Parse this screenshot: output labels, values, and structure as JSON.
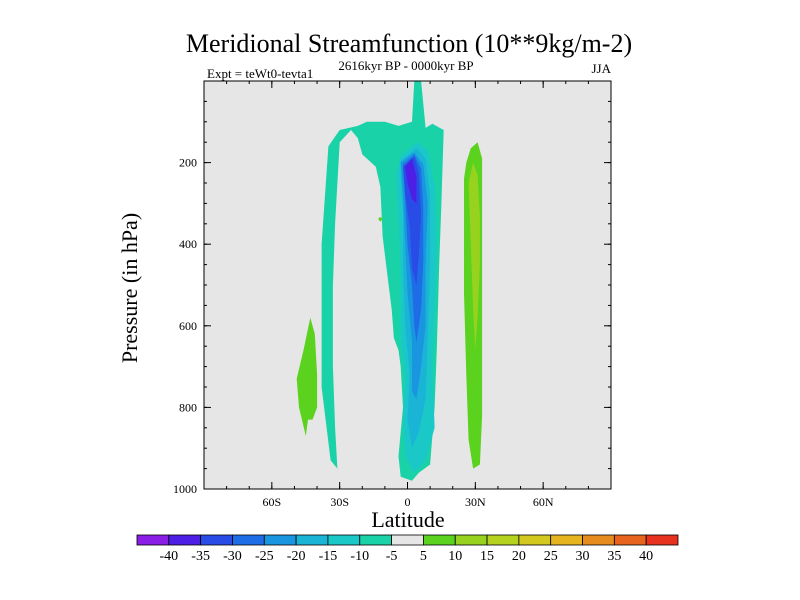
{
  "chart_data": {
    "type": "contour",
    "title": "Meridional Streamfunction (10**9kg/m-2)",
    "subtitle": "2616kyr BP - 0000kyr BP",
    "left_label": "Expt = teWt0-tevta1",
    "right_label": "JJA",
    "xlabel": "Latitude",
    "ylabel": "Pressure (in hPa)",
    "xlim": [
      -90,
      90
    ],
    "ylim": [
      1000,
      0
    ],
    "x_ticks": [
      {
        "value": -60,
        "label": "60S"
      },
      {
        "value": -30,
        "label": "30S"
      },
      {
        "value": 0,
        "label": "0"
      },
      {
        "value": 30,
        "label": "30N"
      },
      {
        "value": 60,
        "label": "60N"
      }
    ],
    "y_ticks": [
      {
        "value": 200,
        "label": "200"
      },
      {
        "value": 400,
        "label": "400"
      },
      {
        "value": 600,
        "label": "600"
      },
      {
        "value": 800,
        "label": "800"
      },
      {
        "value": 1000,
        "label": "1000"
      }
    ],
    "y_minor_step": 50,
    "x_minor_step": 10,
    "background_fill": "#e6e6e6",
    "colorbar": {
      "levels": [
        -40,
        -35,
        -30,
        -25,
        -20,
        -15,
        -10,
        -5,
        5,
        10,
        15,
        20,
        25,
        30,
        35,
        40
      ],
      "colors": [
        "#8a1ee6",
        "#4d1ee6",
        "#2a4ce6",
        "#1f6de6",
        "#1a96e0",
        "#1ab4d6",
        "#1ac8c8",
        "#1ad2a8",
        "#e6e6e6",
        "#5ad21e",
        "#96d21e",
        "#b4d21e",
        "#d2c81e",
        "#e6b41e",
        "#e68c1e",
        "#e6641e",
        "#e6321e"
      ]
    },
    "regions": [
      {
        "level_index": 7,
        "points": [
          [
            -31,
            950
          ],
          [
            -32,
            850
          ],
          [
            -33,
            700
          ],
          [
            -33,
            500
          ],
          [
            -32,
            350
          ],
          [
            -31,
            250
          ],
          [
            -30,
            150
          ],
          [
            -25,
            120
          ],
          [
            -22,
            140
          ],
          [
            -20,
            180
          ],
          [
            -14,
            210
          ],
          [
            -12,
            260
          ],
          [
            -11,
            380
          ],
          [
            -9,
            470
          ],
          [
            -7,
            560
          ],
          [
            -6,
            630
          ],
          [
            -4,
            660
          ],
          [
            -3,
            700
          ],
          [
            -2,
            800
          ],
          [
            -3,
            860
          ],
          [
            -4,
            920
          ],
          [
            -3,
            970
          ],
          [
            2,
            980
          ],
          [
            5,
            960
          ],
          [
            10,
            940
          ],
          [
            12,
            800
          ],
          [
            13,
            650
          ],
          [
            14,
            450
          ],
          [
            15,
            300
          ],
          [
            16,
            120
          ],
          [
            11,
            105
          ],
          [
            8,
            115
          ],
          [
            6,
            0
          ],
          [
            3,
            0
          ],
          [
            2,
            100
          ],
          [
            -4,
            110
          ],
          [
            -10,
            100
          ],
          [
            -18,
            100
          ],
          [
            -22,
            110
          ],
          [
            -30,
            120
          ],
          [
            -35,
            160
          ],
          [
            -38,
            400
          ],
          [
            -38,
            750
          ],
          [
            -34,
            930
          ]
        ]
      },
      {
        "level_index": 6,
        "points": [
          [
            -3,
            185
          ],
          [
            4,
            150
          ],
          [
            9,
            170
          ],
          [
            12,
            260
          ],
          [
            13,
            400
          ],
          [
            12,
            560
          ],
          [
            11,
            700
          ],
          [
            12,
            850
          ],
          [
            8,
            930
          ],
          [
            3,
            960
          ],
          [
            -1,
            920
          ],
          [
            -2,
            820
          ],
          [
            -1,
            720
          ],
          [
            -3,
            640
          ],
          [
            -3,
            480
          ],
          [
            -4,
            330
          ],
          [
            -5,
            230
          ]
        ]
      },
      {
        "level_index": 5,
        "points": [
          [
            -3,
            195
          ],
          [
            4,
            165
          ],
          [
            8,
            190
          ],
          [
            10,
            280
          ],
          [
            10,
            450
          ],
          [
            9,
            620
          ],
          [
            8,
            780
          ],
          [
            5,
            860
          ],
          [
            2,
            900
          ],
          [
            0,
            830
          ],
          [
            1,
            720
          ],
          [
            -1,
            600
          ],
          [
            -2,
            450
          ],
          [
            -2,
            320
          ],
          [
            -3,
            240
          ]
        ]
      },
      {
        "level_index": 4,
        "points": [
          [
            -3,
            200
          ],
          [
            3,
            175
          ],
          [
            7,
            205
          ],
          [
            9,
            300
          ],
          [
            8,
            450
          ],
          [
            8,
            600
          ],
          [
            6,
            700
          ],
          [
            4,
            780
          ],
          [
            2,
            760
          ],
          [
            2,
            640
          ],
          [
            0,
            520
          ],
          [
            -1,
            400
          ],
          [
            -2,
            280
          ]
        ]
      },
      {
        "level_index": 3,
        "points": [
          [
            -2,
            205
          ],
          [
            3,
            180
          ],
          [
            6,
            215
          ],
          [
            7,
            310
          ],
          [
            7,
            440
          ],
          [
            6,
            560
          ],
          [
            4,
            640
          ],
          [
            3,
            600
          ],
          [
            2,
            500
          ],
          [
            0,
            400
          ],
          [
            -1,
            290
          ]
        ]
      },
      {
        "level_index": 2,
        "points": [
          [
            -2,
            210
          ],
          [
            3,
            185
          ],
          [
            5,
            225
          ],
          [
            6,
            330
          ],
          [
            5,
            430
          ],
          [
            4,
            500
          ],
          [
            2,
            460
          ],
          [
            1,
            360
          ],
          [
            -1,
            280
          ]
        ]
      },
      {
        "level_index": 1,
        "points": [
          [
            -1,
            210
          ],
          [
            2,
            190
          ],
          [
            4,
            235
          ],
          [
            4,
            300
          ],
          [
            2,
            290
          ],
          [
            0,
            250
          ]
        ]
      },
      {
        "level_index": 9,
        "points": [
          [
            26,
            200
          ],
          [
            28,
            165
          ],
          [
            31,
            150
          ],
          [
            33,
            190
          ],
          [
            33,
            350
          ],
          [
            33,
            520
          ],
          [
            33,
            680
          ],
          [
            33,
            820
          ],
          [
            32,
            940
          ],
          [
            29,
            950
          ],
          [
            27,
            880
          ],
          [
            26,
            720
          ],
          [
            25,
            520
          ],
          [
            25,
            350
          ],
          [
            25,
            240
          ]
        ]
      },
      {
        "level_index": 10,
        "points": [
          [
            27,
            250
          ],
          [
            29,
            200
          ],
          [
            31,
            230
          ],
          [
            32,
            330
          ],
          [
            32,
            450
          ],
          [
            31,
            580
          ],
          [
            30,
            660
          ],
          [
            29,
            560
          ],
          [
            28,
            400
          ]
        ]
      },
      {
        "level_index": 9,
        "points": [
          [
            -45,
            870
          ],
          [
            -48,
            800
          ],
          [
            -49,
            730
          ],
          [
            -46,
            660
          ],
          [
            -43,
            580
          ],
          [
            -41,
            620
          ],
          [
            -40,
            720
          ],
          [
            -40,
            800
          ],
          [
            -42,
            830
          ],
          [
            -44,
            830
          ]
        ]
      },
      {
        "level_index": 9,
        "points": [
          [
            -12,
            333
          ],
          [
            -11,
            338
          ],
          [
            -12,
            345
          ],
          [
            -13,
            338
          ]
        ]
      }
    ]
  }
}
